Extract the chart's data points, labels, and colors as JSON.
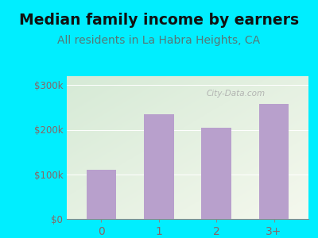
{
  "title": "Median family income by earners",
  "subtitle": "All residents in La Habra Heights, CA",
  "categories": [
    "0",
    "1",
    "2",
    "3+"
  ],
  "values": [
    110000,
    235000,
    205000,
    258000
  ],
  "bar_color": "#b8a0cc",
  "title_fontsize": 13.5,
  "subtitle_fontsize": 10,
  "title_color": "#111111",
  "subtitle_color": "#557777",
  "tick_color": "#886666",
  "ylim": [
    0,
    320000
  ],
  "yticks": [
    0,
    100000,
    200000,
    300000
  ],
  "ytick_labels": [
    "$0",
    "$100k",
    "$200k",
    "$300k"
  ],
  "bg_outer": "#00eeff",
  "bg_plot_topleft": "#d6ead6",
  "bg_plot_bottomright": "#f5f8ee",
  "watermark": "City-Data.com",
  "watermark_color": "#aaaaaa"
}
